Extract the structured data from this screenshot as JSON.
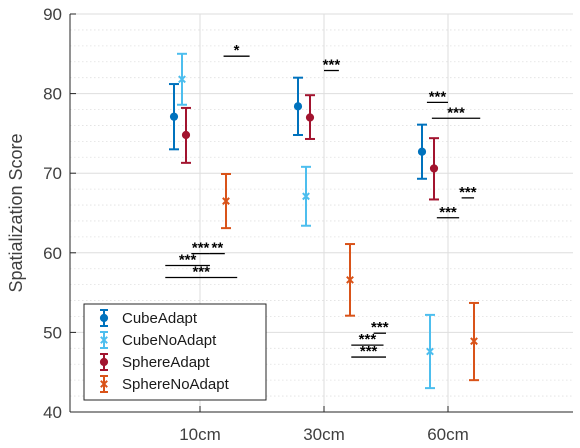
{
  "chart_data": {
    "type": "errorbar",
    "title": "",
    "xlabel": "",
    "ylabel": "Spatialization Score",
    "ylim": [
      40,
      90
    ],
    "yticks": [
      40,
      50,
      60,
      70,
      80,
      90
    ],
    "categories": [
      "10cm",
      "30cm",
      "60cm"
    ],
    "grid": true,
    "legend_position": "bottom-left",
    "series": [
      {
        "name": "CubeAdapt",
        "marker": "circle",
        "color": "#0072BD",
        "values": [
          77.1,
          78.4,
          72.7
        ],
        "lower": [
          73.0,
          74.8,
          69.3
        ],
        "upper": [
          81.2,
          82.0,
          76.1
        ]
      },
      {
        "name": "CubeNoAdapt",
        "marker": "x",
        "color": "#4DBEEE",
        "values": [
          81.8,
          67.1,
          47.6
        ],
        "lower": [
          78.6,
          63.4,
          43.0
        ],
        "upper": [
          85.0,
          70.8,
          52.2
        ]
      },
      {
        "name": "SphereAdapt",
        "marker": "circle",
        "color": "#A2142F",
        "values": [
          74.8,
          77.0,
          70.6
        ],
        "lower": [
          71.3,
          74.3,
          66.7
        ],
        "upper": [
          78.2,
          79.8,
          74.4
        ]
      },
      {
        "name": "SphereNoAdapt",
        "marker": "x",
        "color": "#D95319",
        "values": [
          66.5,
          56.6,
          48.9
        ],
        "lower": [
          63.1,
          52.1,
          44.0
        ],
        "upper": [
          69.9,
          61.1,
          53.7
        ]
      }
    ],
    "significance": [
      {
        "label": "*",
        "y": 84.7,
        "x1": 0.19,
        "x2": 0.4
      },
      {
        "label": "***",
        "y": 59.9,
        "x1": -0.07,
        "x2": 0.08
      },
      {
        "label": "**",
        "y": 59.9,
        "x1": 0.08,
        "x2": 0.2
      },
      {
        "label": "***",
        "y": 58.4,
        "x1": -0.28,
        "x2": 0.08
      },
      {
        "label": "***",
        "y": 56.9,
        "x1": -0.28,
        "x2": 0.3
      },
      {
        "label": "***",
        "y": 82.9,
        "x1": 1.0,
        "x2": 1.12
      },
      {
        "label": "***",
        "y": 49.9,
        "x1": 1.4,
        "x2": 1.5
      },
      {
        "label": "***",
        "y": 48.4,
        "x1": 1.22,
        "x2": 1.48
      },
      {
        "label": "***",
        "y": 46.9,
        "x1": 1.22,
        "x2": 1.5
      },
      {
        "label": "***",
        "y": 78.9,
        "x1": 1.83,
        "x2": 2.0
      },
      {
        "label": "***",
        "y": 76.9,
        "x1": 1.87,
        "x2": 2.26
      },
      {
        "label": "***",
        "y": 66.9,
        "x1": 2.11,
        "x2": 2.21
      },
      {
        "label": "***",
        "y": 64.4,
        "x1": 1.91,
        "x2": 2.09
      }
    ]
  }
}
